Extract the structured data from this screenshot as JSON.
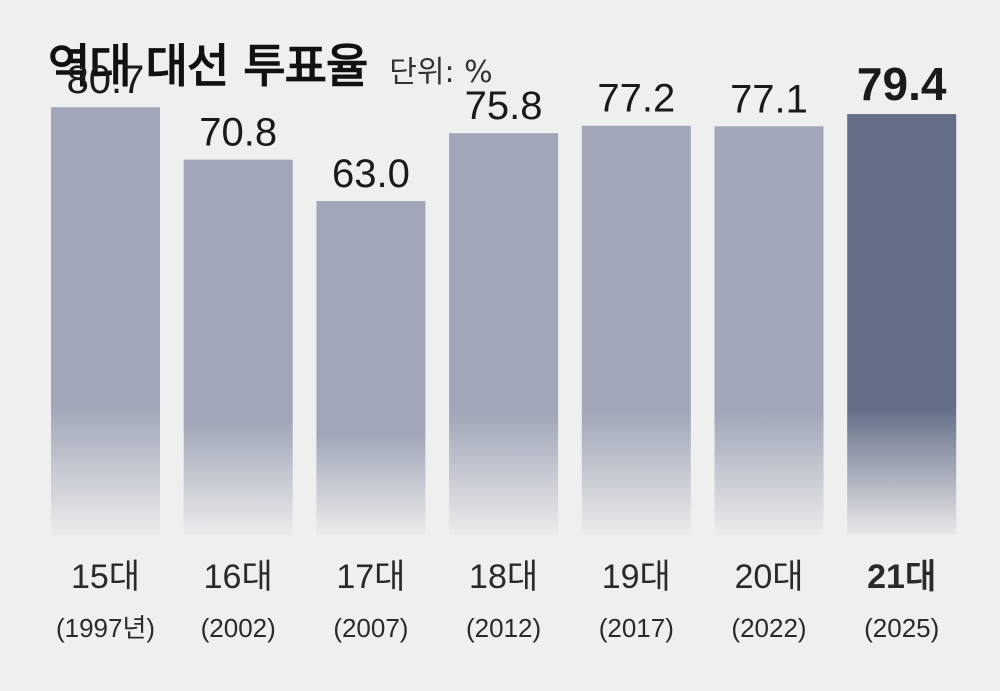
{
  "title": "역대 대선 투표율",
  "unit": "단위: %",
  "colors": {
    "bar": "#a1a7b8",
    "highlight": "#646e87",
    "background": "#efefef"
  },
  "chart_data": {
    "type": "bar",
    "title": "역대 대선 투표율",
    "unit_label": "단위: %",
    "categories": [
      "15대",
      "16대",
      "17대",
      "18대",
      "19대",
      "20대",
      "21대"
    ],
    "sublabels": [
      "(1997년)",
      "(2002)",
      "(2007)",
      "(2012)",
      "(2017)",
      "(2022)",
      "(2025)"
    ],
    "values": [
      80.7,
      70.8,
      63.0,
      75.8,
      77.2,
      77.1,
      79.4
    ],
    "value_labels": [
      "80.7",
      "70.8",
      "63.0",
      "75.8",
      "77.2",
      "77.1",
      "79.4"
    ],
    "highlight_index": 6,
    "ylim": [
      0,
      100
    ],
    "grid": false,
    "legend": "none"
  }
}
